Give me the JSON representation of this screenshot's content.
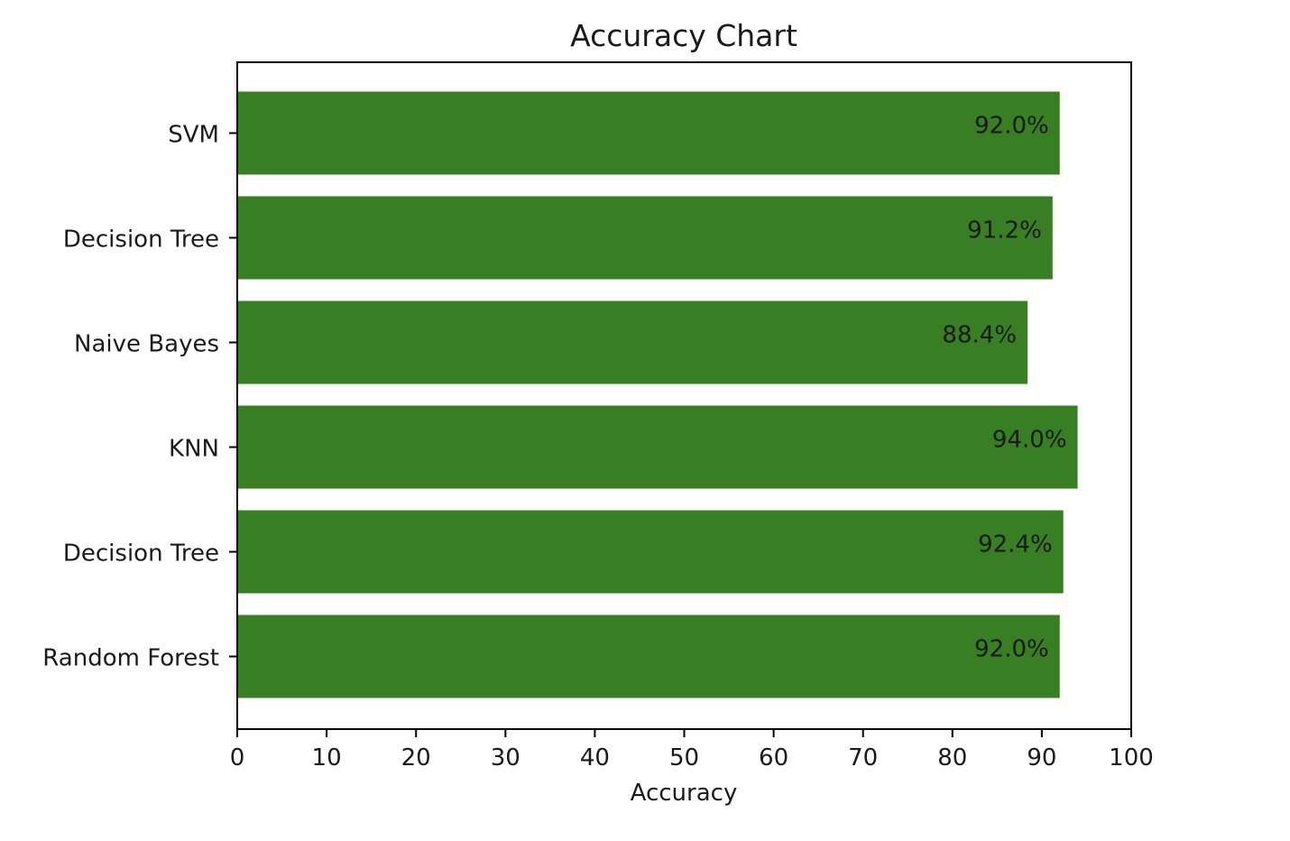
{
  "chart_data": {
    "type": "bar",
    "orientation": "horizontal",
    "title": "Accuracy Chart",
    "xlabel": "Accuracy",
    "ylabel": "",
    "categories": [
      "SVM",
      "Decision Tree",
      "Naive Bayes",
      "KNN",
      "Decision Tree",
      "Random Forest"
    ],
    "values": [
      92.0,
      91.2,
      88.4,
      94.0,
      92.4,
      92.0
    ],
    "value_labels": [
      "92.0%",
      "91.2%",
      "88.4%",
      "94.0%",
      "92.4%",
      "92.0%"
    ],
    "xlim": [
      0,
      100
    ],
    "xticks": [
      0,
      10,
      20,
      30,
      40,
      50,
      60,
      70,
      80,
      90,
      100
    ],
    "xtick_labels": [
      "0",
      "10",
      "20",
      "30",
      "40",
      "50",
      "60",
      "70",
      "80",
      "90",
      "100"
    ],
    "grid": false,
    "legend": "none",
    "bar_color": "#387e22"
  }
}
